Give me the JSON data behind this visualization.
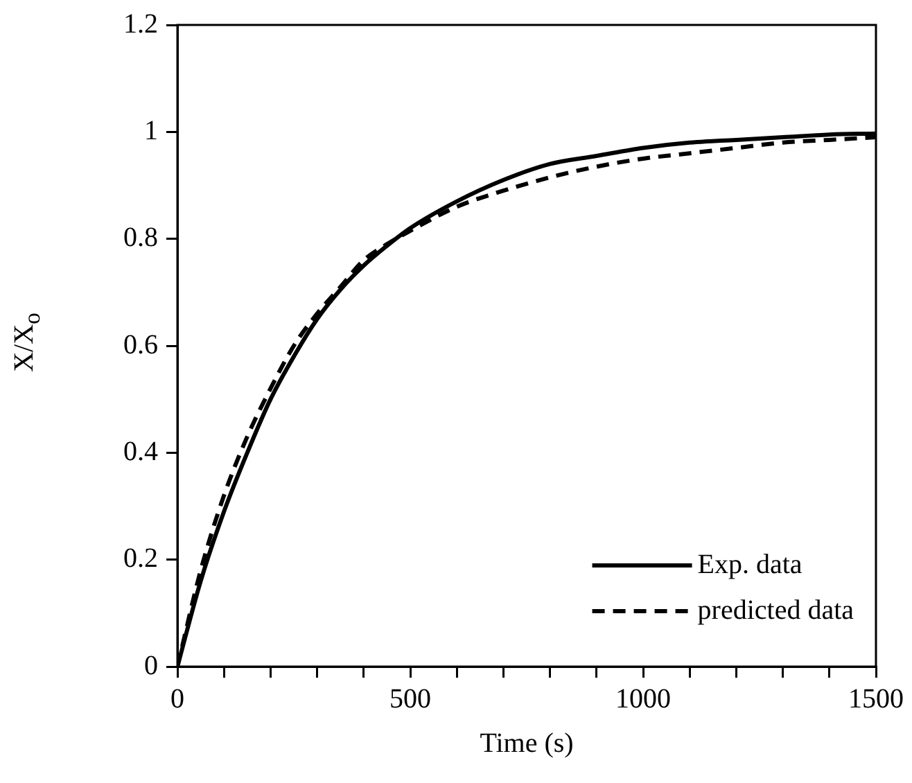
{
  "chart_data": {
    "type": "line",
    "xlabel": "Time (s)",
    "ylabel": "X/X$_{o}$",
    "x": [
      0,
      50,
      100,
      150,
      200,
      250,
      300,
      350,
      400,
      450,
      500,
      600,
      700,
      800,
      900,
      1000,
      1100,
      1200,
      1300,
      1400,
      1500
    ],
    "series": [
      {
        "name": "Exp. data",
        "color": "#000000",
        "line_style": "solid",
        "values": [
          0,
          0.16,
          0.29,
          0.4,
          0.5,
          0.58,
          0.65,
          0.705,
          0.75,
          0.787,
          0.82,
          0.87,
          0.91,
          0.94,
          0.955,
          0.97,
          0.98,
          0.985,
          0.99,
          0.995,
          0.997
        ]
      },
      {
        "name": "predicted data",
        "color": "#000000",
        "line_style": "dashed",
        "values": [
          0,
          0.18,
          0.32,
          0.43,
          0.52,
          0.6,
          0.66,
          0.71,
          0.76,
          0.79,
          0.815,
          0.86,
          0.89,
          0.915,
          0.935,
          0.95,
          0.96,
          0.97,
          0.98,
          0.985,
          0.99
        ]
      }
    ],
    "xlim": [
      0,
      1500
    ],
    "ylim": [
      0,
      1.2
    ],
    "xticks": [
      0,
      {
        "value": 100,
        "label": null
      },
      {
        "value": 200,
        "label": null
      },
      {
        "value": 300,
        "label": null
      },
      {
        "value": 400,
        "label": null
      },
      500,
      {
        "value": 600,
        "label": null
      },
      {
        "value": 700,
        "label": null
      },
      {
        "value": 800,
        "label": null
      },
      {
        "value": 900,
        "label": null
      },
      1000,
      {
        "value": 1100,
        "label": null
      },
      {
        "value": 1200,
        "label": null
      },
      {
        "value": 1300,
        "label": null
      },
      {
        "value": 1400,
        "label": null
      },
      1500
    ],
    "yticks": [
      0,
      0.2,
      0.4,
      0.6,
      0.8,
      1,
      1.2
    ],
    "grid": false,
    "legend": "bottom right",
    "marker": "none"
  }
}
